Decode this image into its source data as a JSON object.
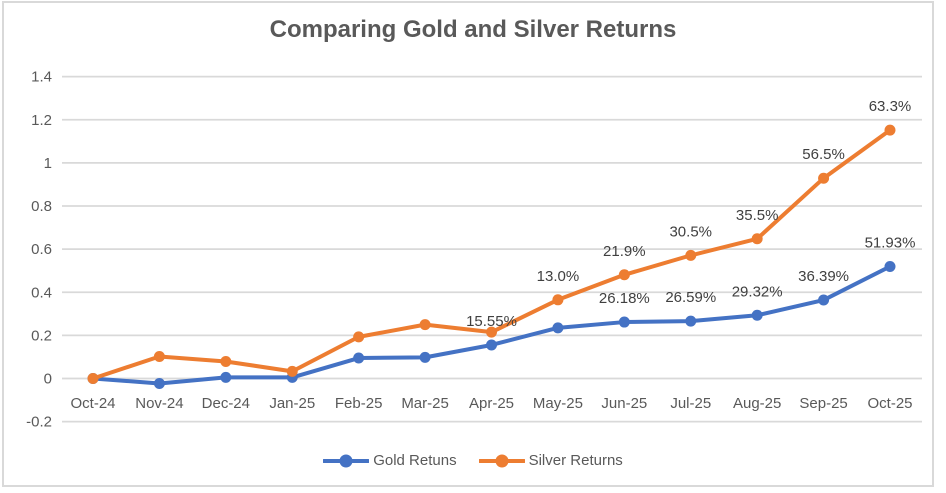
{
  "window": {
    "background": "#ffffff",
    "border_color": "#D9D9D9"
  },
  "chart_data": {
    "type": "line",
    "title": "Comparing Gold and Silver Returns",
    "categories": [
      "Oct-24",
      "Nov-24",
      "Dec-24",
      "Jan-25",
      "Feb-25",
      "Mar-25",
      "Apr-25",
      "May-25",
      "Jun-25",
      "Jul-25",
      "Aug-25",
      "Sep-25",
      "Oct-25"
    ],
    "series": [
      {
        "name": "Gold Retuns",
        "color": "#4472C4",
        "values": [
          0,
          -0.023,
          0.005,
          0.005,
          0.095,
          0.098,
          0.1555,
          0.235,
          0.2618,
          0.2659,
          0.2932,
          0.3639,
          0.5193
        ],
        "data_labels": [
          null,
          null,
          null,
          null,
          null,
          null,
          "15.55%",
          null,
          "26.18%",
          "26.59%",
          "29.32%",
          "36.39%",
          "51.93%"
        ]
      },
      {
        "name": "Silver Returns",
        "color": "#ED7D31",
        "values": [
          0,
          0.102,
          0.079,
          0.033,
          0.193,
          0.25,
          0.215,
          0.365,
          0.481,
          0.571,
          0.648,
          0.929,
          1.152
        ],
        "data_labels": [
          null,
          null,
          null,
          null,
          null,
          null,
          null,
          "13.0%",
          "21.9%",
          "30.5%",
          "35.5%",
          "56.5%",
          "63.3%"
        ]
      }
    ],
    "ylim": [
      -0.2,
      1.4
    ],
    "ytick_step": 0.2,
    "ytick_labels": [
      "-0.2",
      "0",
      "0.2",
      "0.4",
      "0.6",
      "0.8",
      "1",
      "1.2",
      "1.4"
    ],
    "xlabel": "",
    "ylabel": "",
    "grid": "horizontal",
    "legend_position": "bottom",
    "marker": "circle",
    "note": "Silver Returns line is plotted at cumulative (Gold + Silver) height on the axis, while its data labels show Silver-only return values.",
    "styles": {
      "title_color": "#595959",
      "axis_text_color": "#595959",
      "data_label_color": "#404040",
      "gridline_color": "#D9D9D9"
    }
  }
}
